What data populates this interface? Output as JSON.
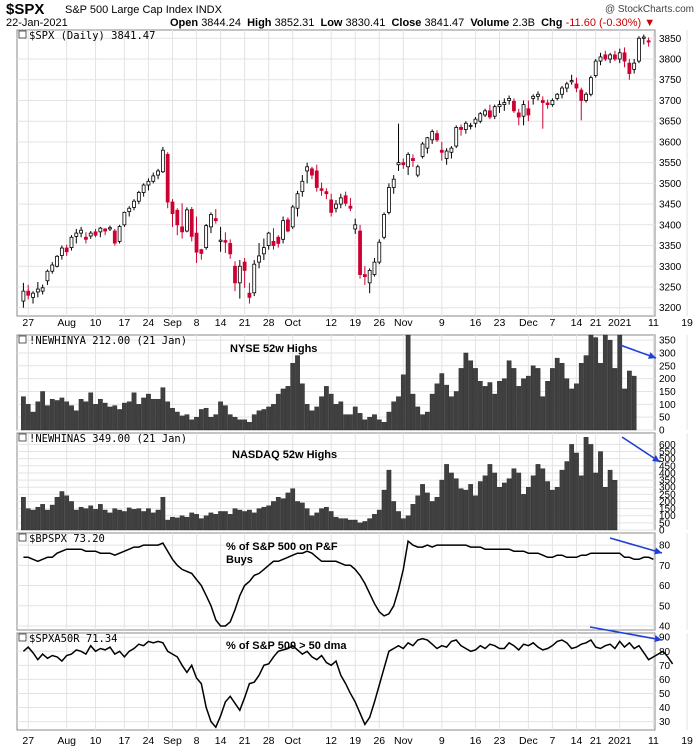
{
  "header": {
    "symbol": "$SPX",
    "name": "S&P 500 Large Cap Index INDX",
    "date": "22-Jan-2021",
    "open_label": "Open",
    "open": "3844.24",
    "high_label": "High",
    "high": "3852.31",
    "low_label": "Low",
    "low": "3830.41",
    "close_label": "Close",
    "close": "3841.47",
    "volume_label": "Volume",
    "volume": "2.3B",
    "chg_label": "Chg",
    "chg": "-11.60 (-0.30%)",
    "copyright": "@ StockCharts.com"
  },
  "colors": {
    "up": "#ffffff",
    "down": "#cc0033",
    "bar": "#404040",
    "arrow": "#1f3fd6"
  },
  "x_labels": [
    "27",
    "Aug",
    "10",
    "17",
    "24",
    "Sep",
    "8",
    "14",
    "21",
    "28",
    "Oct",
    "12",
    "19",
    "26",
    "Nov",
    "9",
    "16",
    "23",
    "Dec",
    "7",
    "14",
    "21",
    "2021",
    "11",
    "19"
  ],
  "chart_data": [
    {
      "type": "candlestick",
      "legend": "$SPX (Daily) 3841.47",
      "ylim": [
        3180,
        3870
      ],
      "yticks": [
        3200,
        3250,
        3300,
        3350,
        3400,
        3450,
        3500,
        3550,
        3600,
        3650,
        3700,
        3750,
        3800,
        3850
      ],
      "ohlc": [
        [
          3216,
          3260,
          3200,
          3240
        ],
        [
          3240,
          3255,
          3220,
          3230
        ],
        [
          3225,
          3240,
          3210,
          3235
        ],
        [
          3238,
          3262,
          3225,
          3245
        ],
        [
          3240,
          3256,
          3232,
          3248
        ],
        [
          3265,
          3292,
          3255,
          3288
        ],
        [
          3288,
          3310,
          3282,
          3303
        ],
        [
          3300,
          3327,
          3297,
          3324
        ],
        [
          3326,
          3350,
          3316,
          3344
        ],
        [
          3344,
          3352,
          3325,
          3335
        ],
        [
          3345,
          3375,
          3338,
          3370
        ],
        [
          3372,
          3390,
          3355,
          3380
        ],
        [
          3380,
          3395,
          3370,
          3387
        ],
        [
          3370,
          3382,
          3355,
          3365
        ],
        [
          3373,
          3385,
          3366,
          3380
        ],
        [
          3383,
          3390,
          3370,
          3375
        ],
        [
          3383,
          3395,
          3370,
          3392
        ],
        [
          3390,
          3392,
          3375,
          3385
        ],
        [
          3390,
          3398,
          3385,
          3393
        ],
        [
          3385,
          3390,
          3350,
          3356
        ],
        [
          3360,
          3400,
          3355,
          3396
        ],
        [
          3400,
          3432,
          3395,
          3430
        ],
        [
          3432,
          3445,
          3420,
          3440
        ],
        [
          3442,
          3462,
          3435,
          3457
        ],
        [
          3457,
          3482,
          3450,
          3478
        ],
        [
          3478,
          3500,
          3468,
          3496
        ],
        [
          3496,
          3512,
          3483,
          3505
        ],
        [
          3505,
          3526,
          3500,
          3518
        ],
        [
          3520,
          3535,
          3510,
          3530
        ],
        [
          3528,
          3588,
          3525,
          3580
        ],
        [
          3570,
          3575,
          3440,
          3455
        ],
        [
          3455,
          3462,
          3395,
          3427
        ],
        [
          3435,
          3440,
          3375,
          3400
        ],
        [
          3395,
          3452,
          3367,
          3383
        ],
        [
          3385,
          3442,
          3382,
          3436
        ],
        [
          3437,
          3443,
          3360,
          3372
        ],
        [
          3380,
          3420,
          3308,
          3334
        ],
        [
          3340,
          3342,
          3316,
          3331
        ],
        [
          3345,
          3402,
          3340,
          3398
        ],
        [
          3395,
          3430,
          3380,
          3425
        ],
        [
          3415,
          3438,
          3403,
          3410
        ],
        [
          3360,
          3395,
          3335,
          3363
        ],
        [
          3362,
          3382,
          3332,
          3358
        ],
        [
          3355,
          3365,
          3318,
          3330
        ],
        [
          3300,
          3312,
          3240,
          3260
        ],
        [
          3260,
          3315,
          3222,
          3300
        ],
        [
          3310,
          3320,
          3248,
          3290
        ],
        [
          3235,
          3260,
          3210,
          3225
        ],
        [
          3236,
          3315,
          3228,
          3305
        ],
        [
          3310,
          3356,
          3295,
          3325
        ],
        [
          3330,
          3367,
          3315,
          3345
        ],
        [
          3350,
          3383,
          3340,
          3380
        ],
        [
          3360,
          3392,
          3340,
          3350
        ],
        [
          3370,
          3375,
          3345,
          3355
        ],
        [
          3365,
          3420,
          3355,
          3410
        ],
        [
          3412,
          3418,
          3382,
          3385
        ],
        [
          3395,
          3448,
          3390,
          3443
        ],
        [
          3440,
          3482,
          3420,
          3475
        ],
        [
          3480,
          3520,
          3468,
          3505
        ],
        [
          3530,
          3550,
          3500,
          3540
        ],
        [
          3535,
          3540,
          3510,
          3520
        ],
        [
          3530,
          3545,
          3480,
          3490
        ],
        [
          3487,
          3502,
          3470,
          3483
        ],
        [
          3480,
          3488,
          3462,
          3475
        ],
        [
          3460,
          3475,
          3420,
          3430
        ],
        [
          3440,
          3460,
          3430,
          3450
        ],
        [
          3450,
          3475,
          3440,
          3465
        ],
        [
          3470,
          3480,
          3445,
          3452
        ],
        [
          3445,
          3465,
          3433,
          3440
        ],
        [
          3390,
          3415,
          3378,
          3400
        ],
        [
          3385,
          3400,
          3270,
          3280
        ],
        [
          3280,
          3300,
          3255,
          3275
        ],
        [
          3260,
          3295,
          3235,
          3290
        ],
        [
          3280,
          3320,
          3275,
          3310
        ],
        [
          3310,
          3365,
          3305,
          3358
        ],
        [
          3370,
          3430,
          3365,
          3425
        ],
        [
          3430,
          3500,
          3425,
          3490
        ],
        [
          3490,
          3520,
          3475,
          3510
        ],
        [
          3545,
          3644,
          3530,
          3550
        ],
        [
          3550,
          3560,
          3535,
          3545
        ],
        [
          3540,
          3575,
          3520,
          3570
        ],
        [
          3560,
          3570,
          3540,
          3555
        ],
        [
          3520,
          3545,
          3515,
          3540
        ],
        [
          3565,
          3600,
          3560,
          3595
        ],
        [
          3585,
          3612,
          3572,
          3610
        ],
        [
          3605,
          3630,
          3595,
          3625
        ],
        [
          3620,
          3628,
          3600,
          3605
        ],
        [
          3580,
          3600,
          3555,
          3575
        ],
        [
          3560,
          3585,
          3545,
          3578
        ],
        [
          3575,
          3590,
          3560,
          3585
        ],
        [
          3590,
          3640,
          3585,
          3635
        ],
        [
          3635,
          3642,
          3615,
          3630
        ],
        [
          3630,
          3650,
          3620,
          3645
        ],
        [
          3640,
          3646,
          3630,
          3640
        ],
        [
          3645,
          3660,
          3635,
          3655
        ],
        [
          3650,
          3672,
          3645,
          3668
        ],
        [
          3665,
          3680,
          3660,
          3675
        ],
        [
          3675,
          3690,
          3655,
          3660
        ],
        [
          3662,
          3690,
          3655,
          3685
        ],
        [
          3685,
          3700,
          3670,
          3690
        ],
        [
          3690,
          3705,
          3675,
          3695
        ],
        [
          3700,
          3712,
          3690,
          3705
        ],
        [
          3698,
          3705,
          3670,
          3675
        ],
        [
          3670,
          3680,
          3640,
          3660
        ],
        [
          3662,
          3700,
          3640,
          3690
        ],
        [
          3680,
          3700,
          3650,
          3665
        ],
        [
          3705,
          3715,
          3690,
          3710
        ],
        [
          3710,
          3722,
          3700,
          3715
        ],
        [
          3700,
          3710,
          3632,
          3695
        ],
        [
          3694,
          3702,
          3680,
          3690
        ],
        [
          3690,
          3705,
          3685,
          3700
        ],
        [
          3705,
          3718,
          3700,
          3715
        ],
        [
          3715,
          3735,
          3705,
          3730
        ],
        [
          3730,
          3745,
          3720,
          3740
        ],
        [
          3745,
          3762,
          3738,
          3748
        ],
        [
          3740,
          3755,
          3720,
          3730
        ],
        [
          3725,
          3731,
          3652,
          3700
        ],
        [
          3700,
          3720,
          3695,
          3715
        ],
        [
          3715,
          3760,
          3710,
          3755
        ],
        [
          3760,
          3800,
          3755,
          3795
        ],
        [
          3795,
          3815,
          3785,
          3805
        ],
        [
          3810,
          3820,
          3795,
          3800
        ],
        [
          3800,
          3815,
          3790,
          3810
        ],
        [
          3810,
          3820,
          3795,
          3800
        ],
        [
          3800,
          3825,
          3790,
          3815
        ],
        [
          3815,
          3828,
          3780,
          3795
        ],
        [
          3790,
          3800,
          3750,
          3765
        ],
        [
          3775,
          3800,
          3765,
          3790
        ],
        [
          3795,
          3855,
          3790,
          3850
        ],
        [
          3850,
          3859,
          3835,
          3853
        ],
        [
          3844,
          3852,
          3830,
          3841
        ]
      ]
    },
    {
      "type": "bar",
      "legend": "!NEWHINYA 212.00 (21 Jan)",
      "title": "NYSE 52w Highs",
      "ylim": [
        0,
        370
      ],
      "yticks": [
        0,
        50,
        100,
        150,
        200,
        250,
        300,
        350
      ],
      "values": [
        130,
        100,
        70,
        110,
        150,
        95,
        120,
        115,
        125,
        110,
        95,
        75,
        120,
        110,
        145,
        100,
        120,
        105,
        90,
        95,
        80,
        105,
        110,
        145,
        100,
        125,
        140,
        120,
        120,
        165,
        110,
        85,
        70,
        55,
        60,
        40,
        50,
        80,
        85,
        50,
        60,
        110,
        95,
        60,
        50,
        40,
        40,
        30,
        60,
        75,
        80,
        90,
        100,
        140,
        160,
        170,
        260,
        290,
        180,
        100,
        75,
        90,
        130,
        170,
        140,
        100,
        110,
        60,
        60,
        90,
        65,
        40,
        50,
        60,
        40,
        30,
        70,
        110,
        130,
        215,
        370,
        140,
        90,
        60,
        70,
        140,
        180,
        220,
        175,
        130,
        150,
        240,
        300,
        270,
        240,
        190,
        170,
        185,
        140,
        190,
        200,
        270,
        240,
        170,
        200,
        210,
        250,
        240,
        130,
        190,
        240,
        280,
        260,
        200,
        160,
        180,
        260,
        290,
        375,
        360,
        260,
        380,
        350,
        240,
        370,
        160,
        230,
        210
      ]
    },
    {
      "type": "bar",
      "legend": "!NEWHINAS 349.00 (21 Jan)",
      "title": "NASDAQ 52w Highs",
      "ylim": [
        0,
        680
      ],
      "yticks": [
        0,
        50,
        100,
        150,
        200,
        250,
        300,
        350,
        400,
        450,
        500,
        550,
        600
      ],
      "values": [
        230,
        150,
        140,
        160,
        180,
        140,
        175,
        230,
        270,
        240,
        200,
        140,
        160,
        150,
        170,
        145,
        180,
        140,
        120,
        150,
        140,
        130,
        155,
        145,
        150,
        130,
        150,
        120,
        140,
        230,
        70,
        90,
        85,
        100,
        90,
        120,
        110,
        80,
        100,
        120,
        110,
        130,
        130,
        110,
        150,
        140,
        130,
        140,
        120,
        150,
        160,
        170,
        200,
        230,
        220,
        260,
        290,
        200,
        190,
        150,
        100,
        120,
        150,
        160,
        130,
        90,
        80,
        80,
        70,
        70,
        50,
        60,
        80,
        110,
        140,
        280,
        420,
        200,
        130,
        80,
        100,
        180,
        240,
        320,
        260,
        200,
        230,
        350,
        460,
        400,
        360,
        290,
        280,
        320,
        240,
        340,
        380,
        460,
        400,
        300,
        330,
        360,
        430,
        400,
        250,
        300,
        380,
        460,
        430,
        340,
        280,
        300,
        420,
        480,
        600,
        540,
        380,
        650,
        600,
        400,
        550,
        300,
        420,
        349
      ]
    },
    {
      "type": "line",
      "legend": "$BPSPX 73.20",
      "title": "% of S&P 500 on  P&F Buys",
      "ylim": [
        38,
        86
      ],
      "yticks": [
        40,
        50,
        60,
        70,
        80
      ],
      "values": [
        74,
        74,
        73,
        72,
        73,
        74,
        74,
        76,
        77,
        78,
        78,
        78,
        78,
        77,
        77,
        77,
        76,
        76,
        76,
        75,
        76,
        77,
        78,
        79,
        79,
        80,
        80,
        80,
        80,
        81,
        77,
        73,
        70,
        68,
        67,
        66,
        63,
        60,
        55,
        50,
        43,
        40,
        40,
        42,
        48,
        55,
        60,
        62,
        65,
        66,
        68,
        70,
        72,
        72,
        73,
        74,
        75,
        76,
        76,
        77,
        76,
        74,
        72,
        72,
        72,
        72,
        71,
        70,
        70,
        68,
        65,
        61,
        56,
        51,
        47,
        45,
        46,
        50,
        58,
        68,
        82,
        80,
        79,
        79,
        80,
        79,
        80,
        80,
        80,
        80,
        80,
        80,
        80,
        79,
        79,
        79,
        78,
        78,
        78,
        78,
        78,
        78,
        77,
        77,
        77,
        76,
        76,
        76,
        75,
        74,
        74,
        75,
        75,
        74,
        74,
        74,
        75,
        75,
        76,
        76,
        76,
        76,
        76,
        76,
        76,
        74,
        74,
        73,
        73,
        74,
        74,
        73
      ]
    },
    {
      "type": "line",
      "legend": "$SPXA50R 71.34",
      "title": "% of S&P 500 > 50 dma",
      "ylim": [
        24,
        93
      ],
      "yticks": [
        30,
        40,
        50,
        60,
        70,
        80,
        90
      ],
      "values": [
        80,
        83,
        79,
        74,
        78,
        75,
        77,
        76,
        73,
        77,
        78,
        81,
        80,
        78,
        84,
        80,
        82,
        81,
        83,
        78,
        80,
        76,
        80,
        82,
        85,
        84,
        87,
        86,
        87,
        86,
        80,
        78,
        76,
        70,
        65,
        70,
        61,
        57,
        40,
        30,
        26,
        34,
        44,
        48,
        43,
        38,
        47,
        57,
        58,
        63,
        70,
        71,
        76,
        80,
        81,
        82,
        84,
        81,
        78,
        80,
        76,
        74,
        77,
        72,
        70,
        73,
        63,
        57,
        50,
        44,
        36,
        28,
        33,
        44,
        56,
        68,
        80,
        82,
        84,
        82,
        86,
        84,
        88,
        89,
        88,
        85,
        82,
        84,
        83,
        87,
        88,
        84,
        82,
        80,
        81,
        84,
        82,
        85,
        84,
        82,
        82,
        86,
        84,
        81,
        85,
        84,
        86,
        83,
        81,
        82,
        84,
        87,
        88,
        86,
        82,
        83,
        85,
        86,
        88,
        83,
        82,
        84,
        85,
        82,
        87,
        83,
        86,
        82,
        84,
        79,
        74,
        76,
        78,
        80,
        76,
        71
      ]
    }
  ]
}
